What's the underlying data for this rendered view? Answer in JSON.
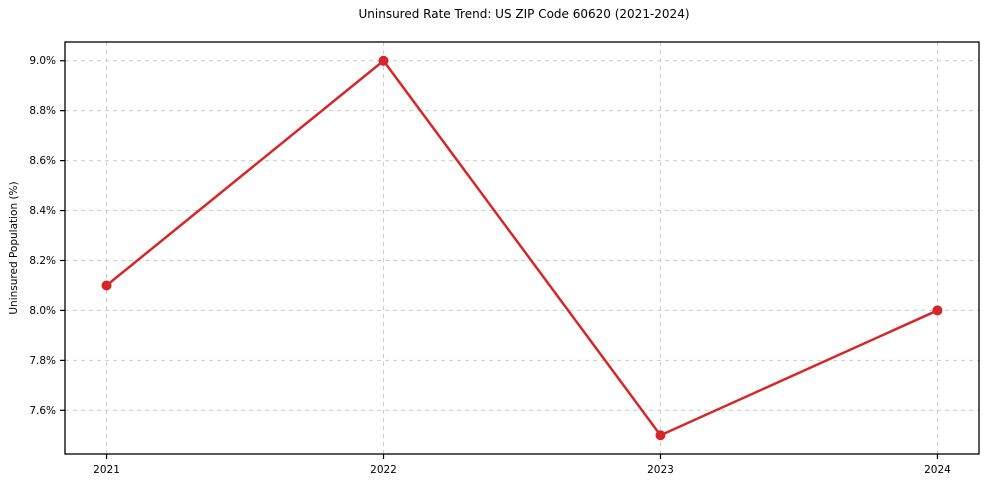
{
  "figure": {
    "background": "#ffffff"
  },
  "chart_data": {
    "type": "line",
    "title": "Uninsured Rate Trend: US ZIP Code 60620 (2021-2024)",
    "xlabel": "",
    "ylabel": "Uninsured Population (%)",
    "x": [
      2021,
      2022,
      2023,
      2024
    ],
    "values": [
      8.1,
      9.0,
      7.5,
      8.0
    ],
    "xlim": [
      2020.85,
      2024.15
    ],
    "ylim": [
      7.425,
      9.075
    ],
    "xticks": {
      "values": [
        2021,
        2022,
        2023,
        2024
      ],
      "labels": [
        "2021",
        "2022",
        "2023",
        "2024"
      ]
    },
    "yticks": {
      "values": [
        7.6,
        7.8,
        8.0,
        8.2,
        8.4,
        8.6,
        8.8,
        9.0
      ],
      "labels": [
        "7.6%",
        "7.8%",
        "8.0%",
        "8.2%",
        "8.4%",
        "8.6%",
        "8.8%",
        "9.0%"
      ]
    },
    "grid": true,
    "grid_style": "dashed",
    "legend_position": "none",
    "colors": {
      "line": "#d62728",
      "marker": "#d62728",
      "grid": "#cccccc",
      "spine": "#000000",
      "tick_text": "#000000"
    },
    "marker_radius": 5,
    "line_width": 2.5
  }
}
